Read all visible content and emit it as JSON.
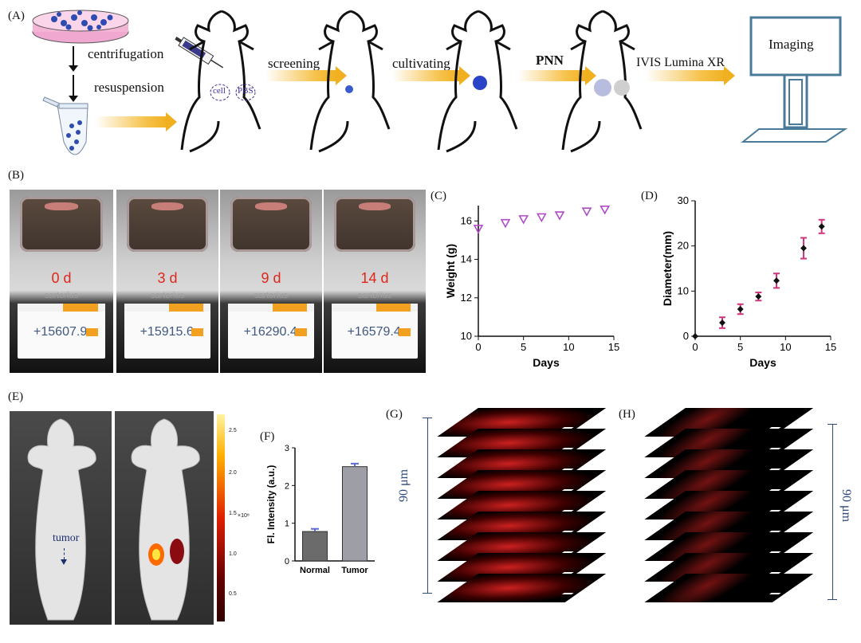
{
  "panelA": {
    "label": "(A)",
    "steps": [
      "centrifugation",
      "resuspension",
      "screening",
      "cultivating",
      "PNN",
      "IVIS Lumina XR"
    ],
    "cell_label": "cell",
    "pbs_label": "PBS",
    "monitor_label": "Imaging"
  },
  "panelB": {
    "label": "(B)",
    "photos": [
      {
        "day": "0 d",
        "brand": "sartorius",
        "reading": "+15607.9"
      },
      {
        "day": "3 d",
        "brand": "sartorius",
        "reading": "+15915.6"
      },
      {
        "day": "9 d",
        "brand": "sartorius",
        "reading": "+16290.4"
      },
      {
        "day": "14 d",
        "brand": "sartorius",
        "reading": "+16579.4"
      }
    ]
  },
  "panelC": {
    "label": "(C)"
  },
  "panelD": {
    "label": "(D)"
  },
  "panelE": {
    "label": "(E)",
    "tumor_label": "tumor",
    "colorbar_ticks": [
      "2.5",
      "2.0",
      "1.5",
      "1.0",
      "0.5"
    ],
    "colorbar_unit": "×10⁸"
  },
  "panelF": {
    "label": "(F)"
  },
  "panelG": {
    "label": "(G)",
    "depth": "90 μm"
  },
  "panelH": {
    "label": "(H)",
    "depth": "90 μm"
  },
  "chart_data": [
    {
      "id": "C",
      "type": "scatter",
      "xlabel": "Days",
      "ylabel": "Weight (g)",
      "xlim": [
        0,
        15
      ],
      "ylim": [
        10,
        16.8
      ],
      "xticks": [
        0,
        5,
        10,
        15
      ],
      "yticks": [
        10,
        12,
        14,
        16
      ],
      "marker": "triangle-down-open",
      "color": "#b04cc8",
      "x": [
        0,
        3,
        5,
        7,
        9,
        12,
        14
      ],
      "y": [
        15.6,
        15.9,
        16.1,
        16.2,
        16.3,
        16.5,
        16.6
      ]
    },
    {
      "id": "D",
      "type": "scatter",
      "xlabel": "Days",
      "ylabel": "Diameter(mm)",
      "xlim": [
        0,
        15
      ],
      "ylim": [
        0,
        30
      ],
      "xticks": [
        0,
        5,
        10,
        15
      ],
      "yticks": [
        0,
        10,
        20,
        30
      ],
      "marker": "diamond-filled",
      "color": "#111111",
      "errorColor": "#d0347a",
      "x": [
        0,
        3,
        5,
        7,
        9,
        12,
        14
      ],
      "y": [
        0,
        3,
        6,
        8.8,
        12.3,
        19.5,
        24.3
      ],
      "err": [
        0,
        1.2,
        1.1,
        0.9,
        1.6,
        2.3,
        1.5
      ]
    },
    {
      "id": "F",
      "type": "bar",
      "ylabel": "Fl. Intensity (a.u.)",
      "categories": [
        "Normal",
        "Tumor"
      ],
      "values": [
        0.78,
        2.5
      ],
      "err": [
        0.07,
        0.08
      ],
      "ylim": [
        0,
        3
      ],
      "yticks": [
        0,
        1,
        2,
        3
      ],
      "colors": [
        "#6b6b6b",
        "#9e9ea6"
      ],
      "errorColor": "#5b6bd0"
    }
  ]
}
